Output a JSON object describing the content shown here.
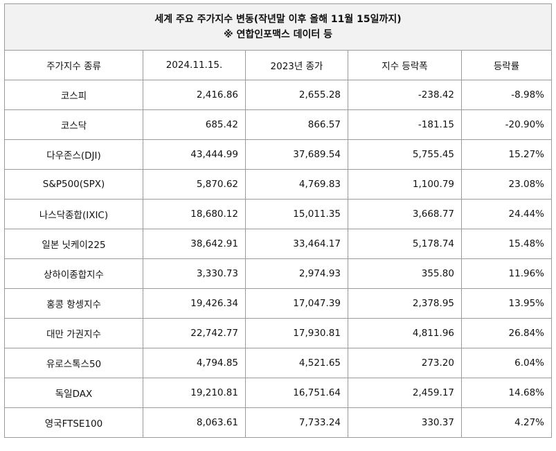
{
  "title": {
    "line1": "세계 주요 주가지수 변동(작년말 이후 올해 11월 15일까지)",
    "line2": "※ 연합인포맥스 데이터 등"
  },
  "headers": [
    "주가지수 종류",
    "2024.11.15.",
    "2023년 종가",
    "지수 등락폭",
    "등락률"
  ],
  "rows": [
    [
      "코스피",
      "2,416.86",
      "2,655.28",
      "-238.42",
      "-8.98%"
    ],
    [
      "코스닥",
      "685.42",
      "866.57",
      "-181.15",
      "-20.90%"
    ],
    [
      "다우존스(DJI)",
      "43,444.99",
      "37,689.54",
      "5,755.45",
      "15.27%"
    ],
    [
      "S&P500(SPX)",
      "5,870.62",
      "4,769.83",
      "1,100.79",
      "23.08%"
    ],
    [
      "나스닥종합(IXIC)",
      "18,680.12",
      "15,011.35",
      "3,668.77",
      "24.44%"
    ],
    [
      "일본 닛케이225",
      "38,642.91",
      "33,464.17",
      "5,178.74",
      "15.48%"
    ],
    [
      "상하이종합지수",
      "3,330.73",
      "2,974.93",
      "355.80",
      "11.96%"
    ],
    [
      "홍콩 항셍지수",
      "19,426.34",
      "17,047.39",
      "2,378.95",
      "13.95%"
    ],
    [
      "대만 가권지수",
      "22,742.77",
      "17,930.81",
      "4,811.96",
      "26.84%"
    ],
    [
      "유로스톡스50",
      "4,794.85",
      "4,521.65",
      "273.20",
      "6.04%"
    ],
    [
      "독일DAX",
      "19,210.81",
      "16,751.64",
      "2,459.17",
      "14.68%"
    ],
    [
      "영국FTSE100",
      "8,063.61",
      "7,733.24",
      "330.37",
      "4.27%"
    ]
  ]
}
